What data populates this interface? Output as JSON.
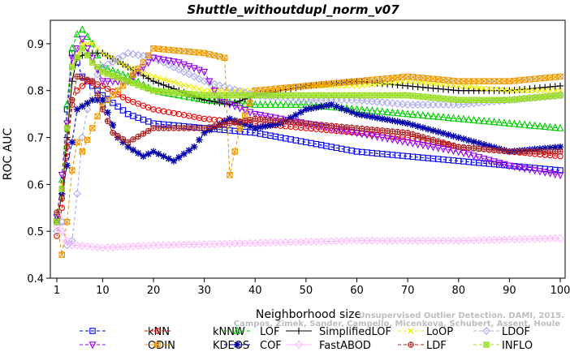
{
  "chart_data": {
    "type": "line",
    "title": "Shuttle_withoutdupl_norm_v07",
    "xlabel": "Neighborhood size",
    "ylabel": "ROC AUC",
    "xlim": [
      1,
      100
    ],
    "ylim": [
      0.4,
      0.95
    ],
    "xticks": [
      1,
      10,
      20,
      30,
      40,
      50,
      60,
      70,
      80,
      90,
      100
    ],
    "yticks": [
      0.4,
      0.5,
      0.6,
      0.7,
      0.8,
      0.9
    ],
    "grid": false,
    "legend_position": "bottom",
    "watermark": [
      "Campos, Zimek, Sander, Campello, Micenkova, Schubert, Assent, Houle",
      "Unsupervised Outlier Detection. DAMI, 2015."
    ],
    "series": [
      {
        "name": "kNN",
        "color": "#0000ee",
        "marker": "square",
        "dash": "4,3",
        "points": [
          [
            1,
            0.52
          ],
          [
            2,
            0.59
          ],
          [
            3,
            0.76
          ],
          [
            4,
            0.88
          ],
          [
            5,
            0.86
          ],
          [
            6,
            0.83
          ],
          [
            8,
            0.81
          ],
          [
            10,
            0.79
          ],
          [
            15,
            0.75
          ],
          [
            20,
            0.73
          ],
          [
            30,
            0.72
          ],
          [
            40,
            0.71
          ],
          [
            50,
            0.69
          ],
          [
            60,
            0.67
          ],
          [
            70,
            0.66
          ],
          [
            80,
            0.65
          ],
          [
            90,
            0.64
          ],
          [
            100,
            0.63
          ]
        ]
      },
      {
        "name": "kNNW",
        "color": "#ee0000",
        "marker": "circle",
        "dash": "4,3",
        "points": [
          [
            1,
            0.49
          ],
          [
            2,
            0.55
          ],
          [
            3,
            0.66
          ],
          [
            4,
            0.77
          ],
          [
            5,
            0.8
          ],
          [
            7,
            0.82
          ],
          [
            10,
            0.81
          ],
          [
            15,
            0.78
          ],
          [
            20,
            0.76
          ],
          [
            30,
            0.74
          ],
          [
            40,
            0.73
          ],
          [
            50,
            0.72
          ],
          [
            60,
            0.71
          ],
          [
            70,
            0.7
          ],
          [
            80,
            0.68
          ],
          [
            90,
            0.67
          ],
          [
            100,
            0.66
          ]
        ]
      },
      {
        "name": "LOF",
        "color": "#00cc00",
        "marker": "triangle-up",
        "dash": "4,3",
        "points": [
          [
            1,
            0.53
          ],
          [
            2,
            0.61
          ],
          [
            3,
            0.77
          ],
          [
            4,
            0.89
          ],
          [
            5,
            0.92
          ],
          [
            6,
            0.93
          ],
          [
            8,
            0.9
          ],
          [
            10,
            0.85
          ],
          [
            15,
            0.83
          ],
          [
            20,
            0.8
          ],
          [
            30,
            0.78
          ],
          [
            40,
            0.77
          ],
          [
            50,
            0.77
          ],
          [
            60,
            0.76
          ],
          [
            70,
            0.75
          ],
          [
            80,
            0.74
          ],
          [
            90,
            0.73
          ],
          [
            100,
            0.72
          ]
        ]
      },
      {
        "name": "SimplifiedLOF",
        "color": "#000000",
        "marker": "plus",
        "dash": "",
        "points": [
          [
            1,
            0.52
          ],
          [
            2,
            0.58
          ],
          [
            3,
            0.7
          ],
          [
            4,
            0.82
          ],
          [
            5,
            0.87
          ],
          [
            7,
            0.88
          ],
          [
            10,
            0.88
          ],
          [
            15,
            0.85
          ],
          [
            20,
            0.82
          ],
          [
            30,
            0.78
          ],
          [
            35,
            0.77
          ],
          [
            40,
            0.79
          ],
          [
            50,
            0.81
          ],
          [
            60,
            0.82
          ],
          [
            70,
            0.81
          ],
          [
            80,
            0.8
          ],
          [
            90,
            0.8
          ],
          [
            100,
            0.81
          ]
        ]
      },
      {
        "name": "LoOP",
        "color": "#eeee00",
        "marker": "x",
        "dash": "4,3",
        "points": [
          [
            1,
            0.52
          ],
          [
            2,
            0.6
          ],
          [
            3,
            0.72
          ],
          [
            4,
            0.85
          ],
          [
            6,
            0.9
          ],
          [
            8,
            0.9
          ],
          [
            10,
            0.88
          ],
          [
            15,
            0.85
          ],
          [
            20,
            0.83
          ],
          [
            30,
            0.8
          ],
          [
            40,
            0.8
          ],
          [
            50,
            0.81
          ],
          [
            60,
            0.81
          ],
          [
            70,
            0.82
          ],
          [
            80,
            0.81
          ],
          [
            90,
            0.8
          ],
          [
            100,
            0.8
          ]
        ]
      },
      {
        "name": "LDOF",
        "color": "#aaaaee",
        "marker": "diamond",
        "dash": "4,3",
        "points": [
          [
            1,
            0.5
          ],
          [
            2,
            0.52
          ],
          [
            3,
            0.47
          ],
          [
            4,
            0.48
          ],
          [
            5,
            0.58
          ],
          [
            6,
            0.7
          ],
          [
            8,
            0.82
          ],
          [
            10,
            0.85
          ],
          [
            15,
            0.88
          ],
          [
            20,
            0.87
          ],
          [
            30,
            0.82
          ],
          [
            40,
            0.79
          ],
          [
            50,
            0.78
          ],
          [
            60,
            0.78
          ],
          [
            70,
            0.77
          ],
          [
            80,
            0.77
          ],
          [
            90,
            0.78
          ],
          [
            100,
            0.79
          ]
        ]
      },
      {
        "name": "ODIN",
        "color": "#9900ee",
        "marker": "triangle-down",
        "dash": "4,3",
        "points": [
          [
            1,
            0.53
          ],
          [
            2,
            0.62
          ],
          [
            3,
            0.73
          ],
          [
            4,
            0.87
          ],
          [
            6,
            0.91
          ],
          [
            8,
            0.87
          ],
          [
            10,
            0.82
          ],
          [
            15,
            0.82
          ],
          [
            20,
            0.87
          ],
          [
            25,
            0.86
          ],
          [
            30,
            0.84
          ],
          [
            33,
            0.78
          ],
          [
            40,
            0.75
          ],
          [
            50,
            0.73
          ],
          [
            60,
            0.71
          ],
          [
            70,
            0.69
          ],
          [
            80,
            0.67
          ],
          [
            90,
            0.64
          ],
          [
            100,
            0.62
          ]
        ]
      },
      {
        "name": "KDEOS",
        "color": "#ee9900",
        "marker": "square-x",
        "dash": "4,3",
        "points": [
          [
            1,
            0.52
          ],
          [
            2,
            0.45
          ],
          [
            3,
            0.52
          ],
          [
            4,
            0.63
          ],
          [
            5,
            0.69
          ],
          [
            6,
            0.67
          ],
          [
            8,
            0.72
          ],
          [
            10,
            0.77
          ],
          [
            15,
            0.82
          ],
          [
            18,
            0.86
          ],
          [
            20,
            0.89
          ],
          [
            30,
            0.88
          ],
          [
            34,
            0.87
          ],
          [
            35,
            0.62
          ],
          [
            36,
            0.67
          ],
          [
            37,
            0.72
          ],
          [
            40,
            0.8
          ],
          [
            50,
            0.81
          ],
          [
            60,
            0.82
          ],
          [
            70,
            0.83
          ],
          [
            80,
            0.82
          ],
          [
            90,
            0.82
          ],
          [
            100,
            0.83
          ]
        ]
      },
      {
        "name": "COF",
        "color": "#0000aa",
        "marker": "star",
        "dash": "4,3",
        "points": [
          [
            1,
            0.52
          ],
          [
            2,
            0.58
          ],
          [
            3,
            0.64
          ],
          [
            4,
            0.69
          ],
          [
            5,
            0.76
          ],
          [
            8,
            0.78
          ],
          [
            10,
            0.78
          ],
          [
            13,
            0.7
          ],
          [
            15,
            0.68
          ],
          [
            18,
            0.66
          ],
          [
            20,
            0.67
          ],
          [
            24,
            0.65
          ],
          [
            28,
            0.68
          ],
          [
            30,
            0.71
          ],
          [
            35,
            0.74
          ],
          [
            40,
            0.72
          ],
          [
            45,
            0.73
          ],
          [
            50,
            0.76
          ],
          [
            55,
            0.77
          ],
          [
            60,
            0.75
          ],
          [
            65,
            0.74
          ],
          [
            70,
            0.73
          ],
          [
            80,
            0.7
          ],
          [
            90,
            0.67
          ],
          [
            100,
            0.68
          ]
        ]
      },
      {
        "name": "FastABOD",
        "color": "#ffbbff",
        "marker": "diamond",
        "dash": "",
        "points": [
          [
            1,
            0.51
          ],
          [
            2,
            0.5
          ],
          [
            3,
            0.48
          ],
          [
            4,
            0.47
          ],
          [
            5,
            0.47
          ],
          [
            10,
            0.465
          ],
          [
            20,
            0.47
          ],
          [
            40,
            0.475
          ],
          [
            60,
            0.48
          ],
          [
            80,
            0.48
          ],
          [
            100,
            0.485
          ]
        ]
      },
      {
        "name": "LDF",
        "color": "#aa2222",
        "marker": "circle-plus",
        "dash": "4,3",
        "points": [
          [
            1,
            0.54
          ],
          [
            2,
            0.57
          ],
          [
            3,
            0.68
          ],
          [
            4,
            0.78
          ],
          [
            5,
            0.83
          ],
          [
            8,
            0.82
          ],
          [
            10,
            0.76
          ],
          [
            12,
            0.71
          ],
          [
            15,
            0.69
          ],
          [
            20,
            0.72
          ],
          [
            30,
            0.72
          ],
          [
            40,
            0.74
          ],
          [
            50,
            0.73
          ],
          [
            60,
            0.72
          ],
          [
            70,
            0.71
          ],
          [
            80,
            0.68
          ],
          [
            90,
            0.67
          ],
          [
            100,
            0.67
          ]
        ]
      },
      {
        "name": "INFLO",
        "color": "#99dd22",
        "marker": "star-box",
        "dash": "4,3",
        "points": [
          [
            1,
            0.52
          ],
          [
            2,
            0.59
          ],
          [
            3,
            0.72
          ],
          [
            4,
            0.85
          ],
          [
            6,
            0.89
          ],
          [
            8,
            0.86
          ],
          [
            10,
            0.84
          ],
          [
            15,
            0.82
          ],
          [
            20,
            0.8
          ],
          [
            30,
            0.79
          ],
          [
            40,
            0.79
          ],
          [
            50,
            0.79
          ],
          [
            60,
            0.79
          ],
          [
            70,
            0.79
          ],
          [
            80,
            0.78
          ],
          [
            90,
            0.78
          ],
          [
            100,
            0.79
          ]
        ]
      }
    ]
  }
}
